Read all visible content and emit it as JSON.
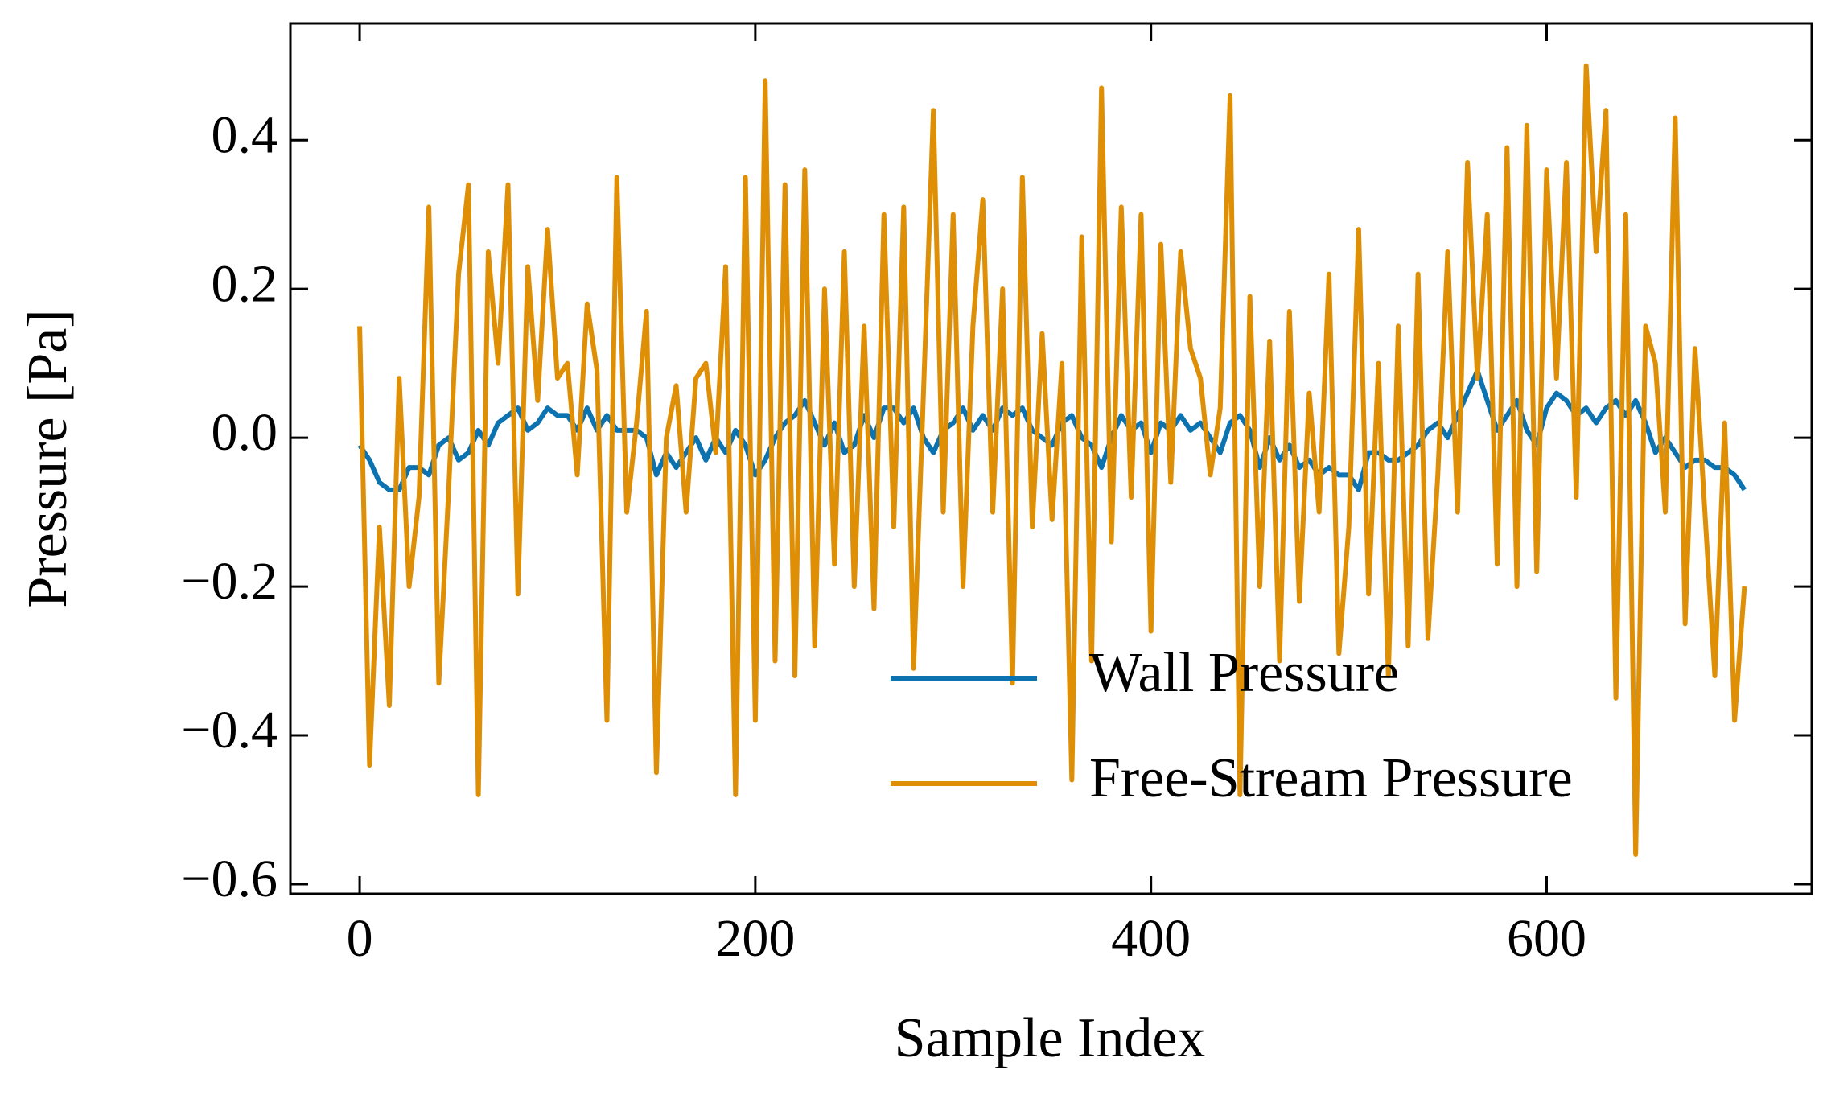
{
  "chart_data": {
    "type": "line",
    "xlabel": "Sample Index",
    "ylabel": "Pressure [Pa]",
    "x": [
      0,
      5,
      10,
      15,
      20,
      25,
      30,
      35,
      40,
      45,
      50,
      55,
      60,
      65,
      70,
      75,
      80,
      85,
      90,
      95,
      100,
      105,
      110,
      115,
      120,
      125,
      130,
      135,
      140,
      145,
      150,
      155,
      160,
      165,
      170,
      175,
      180,
      185,
      190,
      195,
      200,
      205,
      210,
      215,
      220,
      225,
      230,
      235,
      240,
      245,
      250,
      255,
      260,
      265,
      270,
      275,
      280,
      285,
      290,
      295,
      300,
      305,
      310,
      315,
      320,
      325,
      330,
      335,
      340,
      345,
      350,
      355,
      360,
      365,
      370,
      375,
      380,
      385,
      390,
      395,
      400,
      405,
      410,
      415,
      420,
      425,
      430,
      435,
      440,
      445,
      450,
      455,
      460,
      465,
      470,
      475,
      480,
      485,
      490,
      495,
      500,
      505,
      510,
      515,
      520,
      525,
      530,
      535,
      540,
      545,
      550,
      555,
      560,
      565,
      570,
      575,
      580,
      585,
      590,
      595,
      600,
      605,
      610,
      615,
      620,
      625,
      630,
      635,
      640,
      645,
      650,
      655,
      660,
      665,
      670,
      675,
      680,
      685,
      690,
      695,
      700
    ],
    "series": [
      {
        "name": "Wall Pressure",
        "color": "#0c72b0",
        "values": [
          -0.01,
          -0.03,
          -0.06,
          -0.07,
          -0.07,
          -0.04,
          -0.04,
          -0.05,
          -0.01,
          0.0,
          -0.03,
          -0.02,
          0.01,
          -0.01,
          0.02,
          0.03,
          0.04,
          0.01,
          0.02,
          0.04,
          0.03,
          0.03,
          0.01,
          0.04,
          0.01,
          0.03,
          0.01,
          0.01,
          0.01,
          0.0,
          -0.05,
          -0.02,
          -0.04,
          -0.02,
          0.0,
          -0.03,
          0.0,
          -0.02,
          0.01,
          -0.01,
          -0.05,
          -0.03,
          0.0,
          0.02,
          0.03,
          0.05,
          0.02,
          -0.01,
          0.02,
          -0.02,
          -0.01,
          0.03,
          0.0,
          0.04,
          0.04,
          0.02,
          0.04,
          0.0,
          -0.02,
          0.01,
          0.02,
          0.04,
          0.01,
          0.03,
          0.01,
          0.04,
          0.03,
          0.04,
          0.01,
          0.0,
          -0.01,
          0.02,
          0.03,
          0.0,
          -0.01,
          -0.04,
          0.0,
          0.03,
          0.01,
          0.02,
          -0.02,
          0.02,
          0.01,
          0.03,
          0.01,
          0.02,
          0.0,
          -0.02,
          0.02,
          0.03,
          0.01,
          -0.04,
          0.0,
          -0.03,
          -0.01,
          -0.04,
          -0.03,
          -0.05,
          -0.04,
          -0.05,
          -0.05,
          -0.07,
          -0.02,
          -0.02,
          -0.03,
          -0.03,
          -0.02,
          -0.01,
          0.01,
          0.02,
          0.0,
          0.03,
          0.06,
          0.09,
          0.05,
          0.01,
          0.03,
          0.05,
          0.01,
          -0.01,
          0.04,
          0.06,
          0.05,
          0.03,
          0.04,
          0.02,
          0.04,
          0.05,
          0.03,
          0.05,
          0.02,
          -0.02,
          0.0,
          -0.02,
          -0.04,
          -0.03,
          -0.03,
          -0.04,
          -0.04,
          -0.05,
          -0.07
        ]
      },
      {
        "name": "Free-Stream Pressure",
        "color": "#de8f05",
        "values": [
          0.15,
          -0.44,
          -0.12,
          -0.36,
          0.08,
          -0.2,
          -0.08,
          0.31,
          -0.33,
          -0.07,
          0.22,
          0.34,
          -0.48,
          0.25,
          0.1,
          0.34,
          -0.21,
          0.23,
          0.05,
          0.28,
          0.08,
          0.1,
          -0.05,
          0.18,
          0.09,
          -0.38,
          0.35,
          -0.1,
          0.02,
          0.17,
          -0.45,
          0.0,
          0.07,
          -0.1,
          0.08,
          0.1,
          -0.02,
          0.23,
          -0.48,
          0.35,
          -0.38,
          0.48,
          -0.3,
          0.34,
          -0.32,
          0.36,
          -0.28,
          0.2,
          -0.17,
          0.25,
          -0.2,
          0.15,
          -0.23,
          0.3,
          -0.12,
          0.31,
          -0.31,
          0.06,
          0.44,
          -0.1,
          0.3,
          -0.2,
          0.15,
          0.32,
          -0.1,
          0.2,
          -0.33,
          0.35,
          -0.12,
          0.14,
          -0.11,
          0.1,
          -0.46,
          0.27,
          -0.3,
          0.47,
          -0.14,
          0.31,
          -0.08,
          0.3,
          -0.26,
          0.26,
          -0.06,
          0.25,
          0.12,
          0.08,
          -0.05,
          0.04,
          0.46,
          -0.48,
          0.19,
          -0.2,
          0.13,
          -0.3,
          0.17,
          -0.22,
          0.06,
          -0.1,
          0.22,
          -0.29,
          -0.12,
          0.28,
          -0.21,
          0.1,
          -0.32,
          0.15,
          -0.28,
          0.22,
          -0.27,
          -0.05,
          0.25,
          -0.1,
          0.37,
          0.08,
          0.3,
          -0.17,
          0.39,
          -0.2,
          0.42,
          -0.18,
          0.36,
          0.08,
          0.37,
          -0.08,
          0.5,
          0.25,
          0.44,
          -0.35,
          0.3,
          -0.56,
          0.15,
          0.1,
          -0.1,
          0.43,
          -0.25,
          0.12,
          -0.1,
          -0.32,
          0.02,
          -0.38,
          -0.2
        ]
      }
    ],
    "xlim": [
      -35,
      734
    ],
    "ylim": [
      -0.613,
      0.557
    ],
    "xticks": [
      0,
      200,
      400,
      600
    ],
    "yticks": [
      {
        "value": -0.6,
        "label": "−0.6"
      },
      {
        "value": -0.4,
        "label": "−0.4"
      },
      {
        "value": -0.2,
        "label": "−0.2"
      },
      {
        "value": 0,
        "label": "0.0"
      },
      {
        "value": 0.2,
        "label": "0.2"
      },
      {
        "value": 0.4,
        "label": "0.4"
      }
    ],
    "legend": "lower right",
    "grid": false
  }
}
